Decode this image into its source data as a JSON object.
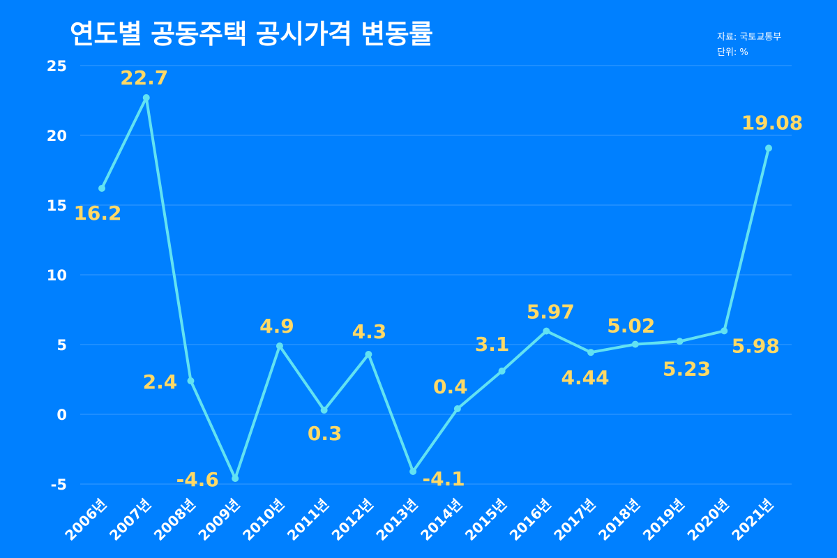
{
  "colors": {
    "background": "#0080FF",
    "line": "#62E2F2",
    "data_label": "#FFD966",
    "text": "#FFFFFF",
    "grid": "#3A9CFF"
  },
  "chart_data": {
    "type": "line",
    "title": "연도별 공동주택 공시가격 변동률",
    "annotations": [
      "자료: 국토교통부",
      "단위: %"
    ],
    "xlabel": "",
    "ylabel": "",
    "categories": [
      "2006년",
      "2007년",
      "2008년",
      "2009년",
      "2010년",
      "2011년",
      "2012년",
      "2013년",
      "2014년",
      "2015년",
      "2016년",
      "2017년",
      "2018년",
      "2019년",
      "2020년",
      "2021년"
    ],
    "series": [
      {
        "values": [
          16.2,
          22.7,
          2.4,
          -4.6,
          4.9,
          0.3,
          4.3,
          -4.1,
          0.4,
          3.1,
          5.97,
          4.44,
          5.02,
          5.23,
          5.98,
          19.08
        ]
      }
    ],
    "y_ticks": [
      25,
      20,
      15,
      10,
      5,
      0,
      -5
    ],
    "ylim": [
      -5,
      25
    ],
    "grid": true,
    "legend": "none",
    "data_labels": true
  }
}
